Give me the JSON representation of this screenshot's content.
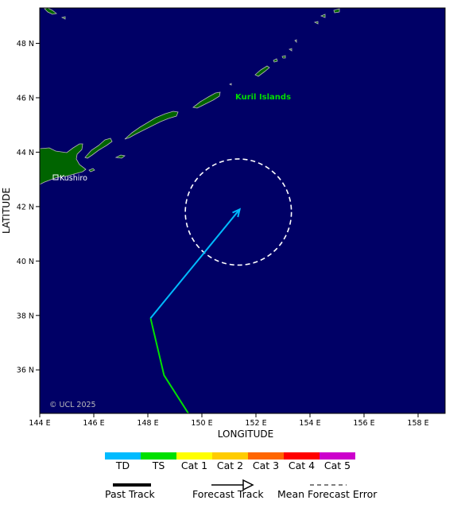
{
  "map": {
    "copyright": "© UCL 2025",
    "region_label": "Kuril Islands",
    "city_label": "Kushiro",
    "x_axis_title": "LONGITUDE",
    "y_axis_title": "LATITUDE",
    "lon_ticks": [
      "144 E",
      "146 E",
      "148 E",
      "150 E",
      "152 E",
      "154 E",
      "156 E",
      "158 E"
    ],
    "lat_ticks": [
      "36 N",
      "38 N",
      "40 N",
      "42 N",
      "44 N",
      "46 N",
      "48 N"
    ],
    "lon_range": [
      144,
      159
    ],
    "lat_range": [
      34.4,
      49.3
    ],
    "colors": {
      "ocean": "#000066",
      "land": "#006400",
      "coast": "#b8b8b8",
      "region_label": "#00dd00"
    }
  },
  "track": {
    "past": [
      {
        "lon": 149.5,
        "lat": 34.4,
        "category": "TS"
      },
      {
        "lon": 148.6,
        "lat": 35.8,
        "category": "TS"
      },
      {
        "lon": 148.1,
        "lat": 37.9,
        "category": "TS"
      }
    ],
    "forecast": [
      {
        "lon": 148.1,
        "lat": 37.9,
        "category": "TD"
      },
      {
        "lon": 151.4,
        "lat": 41.9,
        "category": "TD"
      }
    ],
    "error_circle": {
      "lon": 151.35,
      "lat": 41.8,
      "radius_deg_lat": 1.95
    }
  },
  "legend": {
    "categories": [
      {
        "label": "TD",
        "color": "#00bbff"
      },
      {
        "label": "TS",
        "color": "#00e000"
      },
      {
        "label": "Cat 1",
        "color": "#ffff00"
      },
      {
        "label": "Cat 2",
        "color": "#ffcc00"
      },
      {
        "label": "Cat 3",
        "color": "#ff6600"
      },
      {
        "label": "Cat 4",
        "color": "#ff0000"
      },
      {
        "label": "Cat 5",
        "color": "#cc00cc"
      }
    ],
    "past_track_label": "Past Track",
    "forecast_track_label": "Forecast Track",
    "error_label": "Mean Forecast Error"
  }
}
